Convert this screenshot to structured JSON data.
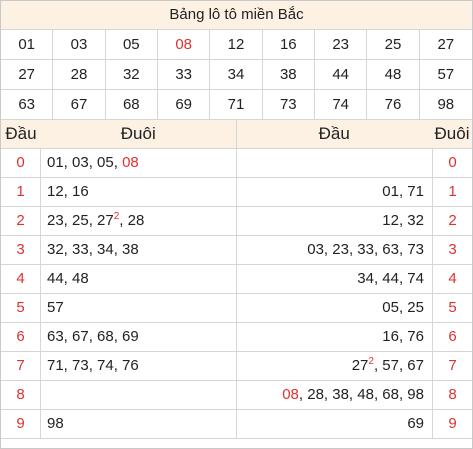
{
  "title": "Bảng lô tô miền Bắc",
  "numbers": [
    "01",
    "03",
    "05",
    "08",
    "12",
    "16",
    "23",
    "25",
    "27",
    "27",
    "28",
    "32",
    "33",
    "34",
    "38",
    "44",
    "48",
    "57",
    "63",
    "67",
    "68",
    "69",
    "71",
    "73",
    "74",
    "76",
    "98"
  ],
  "highlight_number": "08",
  "left_table": {
    "header_dau": "Đầu",
    "header_duoi": "Đuôi",
    "rows": [
      {
        "dau": "0",
        "duoi": [
          {
            "t": "01, 03, 05, "
          },
          {
            "t": "08",
            "red": true
          }
        ]
      },
      {
        "dau": "1",
        "duoi": [
          {
            "t": "12, 16"
          }
        ]
      },
      {
        "dau": "2",
        "duoi": [
          {
            "t": "23, 25, 27"
          },
          {
            "t": "2",
            "sup": true,
            "red": true
          },
          {
            "t": ", 28"
          }
        ]
      },
      {
        "dau": "3",
        "duoi": [
          {
            "t": "32, 33, 34, 38"
          }
        ]
      },
      {
        "dau": "4",
        "duoi": [
          {
            "t": "44, 48"
          }
        ]
      },
      {
        "dau": "5",
        "duoi": [
          {
            "t": "57"
          }
        ]
      },
      {
        "dau": "6",
        "duoi": [
          {
            "t": "63, 67, 68, 69"
          }
        ]
      },
      {
        "dau": "7",
        "duoi": [
          {
            "t": "71, 73, 74, 76"
          }
        ]
      },
      {
        "dau": "8",
        "duoi": []
      },
      {
        "dau": "9",
        "duoi": [
          {
            "t": "98"
          }
        ]
      }
    ]
  },
  "right_table": {
    "header_dau": "Đầu",
    "header_duoi": "Đuôi",
    "rows": [
      {
        "dau": "0",
        "values": []
      },
      {
        "dau": "1",
        "values": [
          {
            "t": "01, 71"
          }
        ]
      },
      {
        "dau": "2",
        "values": [
          {
            "t": "12, 32"
          }
        ]
      },
      {
        "dau": "3",
        "values": [
          {
            "t": "03, 23, 33, 63, 73"
          }
        ]
      },
      {
        "dau": "4",
        "values": [
          {
            "t": "34, 44, 74"
          }
        ]
      },
      {
        "dau": "5",
        "values": [
          {
            "t": "05, 25"
          }
        ]
      },
      {
        "dau": "6",
        "values": [
          {
            "t": "16, 76"
          }
        ]
      },
      {
        "dau": "7",
        "values": [
          {
            "t": "27"
          },
          {
            "t": "2",
            "sup": true,
            "red": true
          },
          {
            "t": ", 57, 67"
          }
        ]
      },
      {
        "dau": "8",
        "values": [
          {
            "t": "08",
            "red": true
          },
          {
            "t": ", 28, 38, 48, 68, 98"
          }
        ]
      },
      {
        "dau": "9",
        "values": [
          {
            "t": "69"
          }
        ]
      }
    ]
  },
  "colors": {
    "accent": "#e03131",
    "header_bg": "#fdf1e3",
    "border": "#d6d6d6"
  }
}
